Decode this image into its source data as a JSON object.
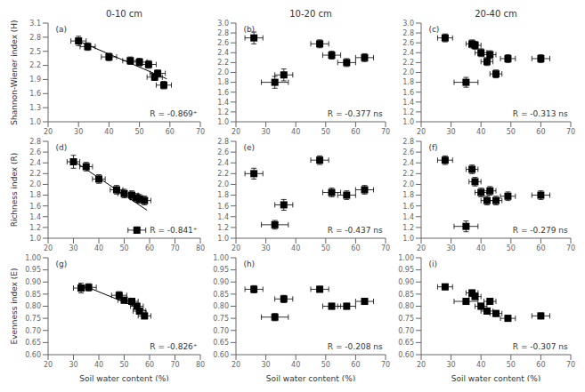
{
  "chart_data": [
    {
      "type": "scatter",
      "title": "0-10 cm",
      "ylabel": "Shannon-Wiener index (H)",
      "annotations": [
        "(a)",
        "R = -0.869⁺"
      ],
      "xlim": [
        20,
        70
      ],
      "ylim": [
        1.0,
        3.1
      ],
      "xticks": [
        20,
        30,
        40,
        50,
        60,
        70
      ],
      "yticks": [
        {
          "value": 1.0,
          "label": "1.0"
        },
        1.3,
        1.6,
        1.9,
        2.2,
        2.5,
        2.8,
        3.1
      ],
      "series": [
        {
          "type": "scatter",
          "marker": "square",
          "color": "#000000",
          "x": [
            30,
            33,
            40,
            47,
            50,
            53,
            55,
            56,
            58
          ],
          "values": [
            2.72,
            2.6,
            2.38,
            2.3,
            2.27,
            2.22,
            1.95,
            2.03,
            1.78
          ],
          "xerr": [
            2.5,
            2.5,
            2.5,
            2.5,
            2.5,
            2.5,
            2.5,
            2.5,
            2.5
          ],
          "yerr": [
            0.1,
            0.08,
            0.08,
            0.08,
            0.08,
            0.08,
            0.07,
            0.07,
            0.08
          ]
        },
        {
          "type": "line",
          "line_style": "solid",
          "color": "#000000",
          "x": [
            29,
            59
          ],
          "values": [
            2.7469,
            1.9136
          ]
        }
      ]
    },
    {
      "type": "scatter",
      "title": "10-20 cm",
      "annotations": [
        "(b)",
        "R = -0.377 ns"
      ],
      "xlim": [
        20,
        70
      ],
      "ylim": [
        1.0,
        3.0
      ],
      "xticks": [
        20,
        30,
        40,
        50,
        60,
        70
      ],
      "yticks": [
        {
          "value": 1.0,
          "label": "1.0"
        },
        1.2,
        1.4,
        1.6,
        1.8,
        {
          "value": 2.0,
          "label": "2.0"
        },
        2.2,
        2.4,
        2.6,
        2.8,
        {
          "value": 3.0,
          "label": "3.0"
        }
      ],
      "series": [
        {
          "type": "scatter",
          "marker": "square",
          "color": "#000000",
          "x": [
            26,
            33,
            36,
            48,
            52,
            57,
            63
          ],
          "values": [
            2.7,
            1.8,
            1.95,
            2.58,
            2.35,
            2.2,
            2.3
          ],
          "xerr": [
            3.0,
            4.5,
            3.0,
            3.0,
            3.0,
            3.0,
            3.0
          ],
          "yerr": [
            0.12,
            0.12,
            0.12,
            0.08,
            0.08,
            0.08,
            0.08
          ]
        }
      ]
    },
    {
      "type": "scatter",
      "title": "20-40 cm",
      "annotations": [
        "(c)",
        "R = -0.313 ns"
      ],
      "xlim": [
        20,
        70
      ],
      "ylim": [
        1.0,
        3.0
      ],
      "xticks": [
        20,
        30,
        40,
        50,
        60,
        70
      ],
      "yticks": [
        {
          "value": 1.0,
          "label": "1.0"
        },
        1.2,
        1.4,
        1.6,
        1.8,
        {
          "value": 2.0,
          "label": "2.0"
        },
        2.2,
        2.4,
        2.6,
        2.8,
        {
          "value": 3.0,
          "label": "3.0"
        }
      ],
      "series": [
        {
          "type": "scatter",
          "marker": "square",
          "color": "#000000",
          "x": [
            28,
            35,
            37,
            38,
            40,
            42,
            43,
            45,
            49,
            60
          ],
          "values": [
            2.7,
            1.8,
            2.58,
            2.55,
            2.4,
            2.22,
            2.36,
            1.97,
            2.28,
            2.28
          ],
          "xerr": [
            2.5,
            4.0,
            2.0,
            2.0,
            2.0,
            2.0,
            2.0,
            2.0,
            2.5,
            3.0
          ],
          "yerr": [
            0.08,
            0.1,
            0.08,
            0.08,
            0.08,
            0.08,
            0.08,
            0.08,
            0.08,
            0.08
          ]
        }
      ]
    },
    {
      "type": "scatter",
      "ylabel": "Richness index (R)",
      "annotations": [
        "(d)",
        "R = -0.841⁺"
      ],
      "xlim": [
        20,
        80
      ],
      "ylim": [
        1.0,
        2.8
      ],
      "xticks": [
        20,
        30,
        40,
        50,
        60,
        70,
        80
      ],
      "yticks": [
        {
          "value": 1.0,
          "label": "1.0"
        },
        1.2,
        1.4,
        1.6,
        1.8,
        {
          "value": 2.0,
          "label": "2.0"
        },
        2.2,
        2.4,
        2.6,
        2.8
      ],
      "series": [
        {
          "type": "scatter",
          "marker": "square",
          "color": "#000000",
          "x": [
            30,
            35,
            40,
            47,
            50,
            53,
            55,
            56,
            58,
            55
          ],
          "values": [
            2.42,
            2.33,
            2.1,
            1.9,
            1.83,
            1.8,
            1.75,
            1.73,
            1.7,
            1.15
          ],
          "xerr": [
            2.5,
            2.5,
            2.5,
            2.5,
            2.5,
            2.5,
            2.5,
            2.5,
            2.5,
            3.5
          ],
          "yerr": [
            0.12,
            0.08,
            0.08,
            0.08,
            0.08,
            0.08,
            0.08,
            0.08,
            0.08,
            0.06
          ]
        },
        {
          "type": "line",
          "line_style": "solid",
          "color": "#000000",
          "x": [
            29,
            59
          ],
          "values": [
            2.4694,
            1.5195
          ]
        }
      ]
    },
    {
      "type": "scatter",
      "annotations": [
        "(e)",
        "R = -0.437 ns"
      ],
      "xlim": [
        20,
        70
      ],
      "ylim": [
        1.0,
        2.8
      ],
      "xticks": [
        20,
        30,
        40,
        50,
        60,
        70
      ],
      "yticks": [
        {
          "value": 1.0,
          "label": "1.0"
        },
        1.2,
        1.4,
        1.6,
        1.8,
        {
          "value": 2.0,
          "label": "2.0"
        },
        2.2,
        2.4,
        2.6,
        2.8
      ],
      "series": [
        {
          "type": "scatter",
          "marker": "square",
          "color": "#000000",
          "x": [
            26,
            33,
            36,
            48,
            52,
            57,
            63
          ],
          "values": [
            2.2,
            1.25,
            1.62,
            2.45,
            1.85,
            1.8,
            1.9
          ],
          "xerr": [
            3.0,
            4.5,
            3.0,
            3.0,
            3.0,
            3.0,
            3.0
          ],
          "yerr": [
            0.1,
            0.08,
            0.1,
            0.08,
            0.08,
            0.08,
            0.08
          ]
        }
      ]
    },
    {
      "type": "scatter",
      "annotations": [
        "(f)",
        "R = -0.279 ns"
      ],
      "xlim": [
        20,
        70
      ],
      "ylim": [
        1.0,
        2.8
      ],
      "xticks": [
        20,
        30,
        40,
        50,
        60,
        70
      ],
      "yticks": [
        {
          "value": 1.0,
          "label": "1.0"
        },
        1.2,
        1.4,
        1.6,
        1.8,
        {
          "value": 2.0,
          "label": "2.0"
        },
        2.2,
        2.4,
        2.6,
        2.8
      ],
      "series": [
        {
          "type": "scatter",
          "marker": "square",
          "color": "#000000",
          "x": [
            28,
            35,
            37,
            38,
            40,
            42,
            43,
            45,
            49,
            60
          ],
          "values": [
            2.45,
            1.22,
            2.28,
            2.05,
            1.85,
            1.7,
            1.88,
            1.7,
            1.78,
            1.8
          ],
          "xerr": [
            2.5,
            4.0,
            2.0,
            2.0,
            2.0,
            2.0,
            2.0,
            2.0,
            2.5,
            3.0
          ],
          "yerr": [
            0.08,
            0.1,
            0.08,
            0.08,
            0.08,
            0.08,
            0.08,
            0.08,
            0.08,
            0.08
          ]
        }
      ]
    },
    {
      "type": "scatter",
      "ylabel": "Evenness index (E)",
      "xlabel": "Soil water content (%)",
      "annotations": [
        "(g)",
        "R = -0.826⁺"
      ],
      "xlim": [
        20,
        80
      ],
      "ylim": [
        0.6,
        1.0
      ],
      "xticks": [
        20,
        30,
        40,
        50,
        60,
        70,
        80
      ],
      "yticks": [
        {
          "value": 0.6,
          "label": "0.60"
        },
        0.65,
        {
          "value": 0.7,
          "label": "0.70"
        },
        0.75,
        {
          "value": 0.8,
          "label": "0.80"
        },
        0.85,
        {
          "value": 0.9,
          "label": "0.90"
        },
        0.95,
        {
          "value": 1.0,
          "label": "1.00"
        }
      ],
      "series": [
        {
          "type": "scatter",
          "marker": "square",
          "color": "#000000",
          "x": [
            33,
            36,
            48,
            50,
            53,
            55,
            56,
            58
          ],
          "values": [
            0.875,
            0.878,
            0.845,
            0.825,
            0.82,
            0.8,
            0.78,
            0.76
          ],
          "xerr": [
            3.0,
            3.0,
            3.0,
            2.5,
            2.5,
            2.5,
            2.5,
            2.5
          ],
          "yerr": [
            0.02,
            0.015,
            0.015,
            0.012,
            0.012,
            0.012,
            0.012,
            0.012
          ]
        },
        {
          "type": "line",
          "line_style": "solid",
          "color": "#000000",
          "x": [
            32,
            59
          ],
          "values": [
            0.8936,
            0.7787
          ]
        }
      ]
    },
    {
      "type": "scatter",
      "xlabel": "Soil water content (%)",
      "annotations": [
        "(h)",
        "R = -0.208 ns"
      ],
      "xlim": [
        20,
        70
      ],
      "ylim": [
        0.6,
        1.0
      ],
      "xticks": [
        20,
        30,
        40,
        50,
        60,
        70
      ],
      "yticks": [
        {
          "value": 0.6,
          "label": "0.60"
        },
        0.65,
        {
          "value": 0.7,
          "label": "0.70"
        },
        0.75,
        {
          "value": 0.8,
          "label": "0.80"
        },
        0.85,
        {
          "value": 0.9,
          "label": "0.90"
        },
        0.95,
        {
          "value": 1.0,
          "label": "1.00"
        }
      ],
      "series": [
        {
          "type": "scatter",
          "marker": "square",
          "color": "#000000",
          "x": [
            26,
            33,
            36,
            48,
            52,
            57,
            63
          ],
          "values": [
            0.87,
            0.755,
            0.83,
            0.87,
            0.8,
            0.8,
            0.82
          ],
          "xerr": [
            3.0,
            4.5,
            3.0,
            3.0,
            3.0,
            3.0,
            3.0
          ],
          "yerr": [
            0.015,
            0.015,
            0.015,
            0.012,
            0.012,
            0.012,
            0.012
          ]
        }
      ]
    },
    {
      "type": "scatter",
      "xlabel": "Soil water content (%)",
      "annotations": [
        "(i)",
        "R = -0.307 ns"
      ],
      "xlim": [
        20,
        70
      ],
      "ylim": [
        0.6,
        1.0
      ],
      "xticks": [
        20,
        30,
        40,
        50,
        60,
        70
      ],
      "yticks": [
        {
          "value": 0.6,
          "label": "0.60"
        },
        0.65,
        {
          "value": 0.7,
          "label": "0.70"
        },
        0.75,
        {
          "value": 0.8,
          "label": "0.80"
        },
        0.85,
        {
          "value": 0.9,
          "label": "0.90"
        },
        0.95,
        {
          "value": 1.0,
          "label": "1.00"
        }
      ],
      "series": [
        {
          "type": "scatter",
          "marker": "square",
          "color": "#000000",
          "x": [
            28,
            35,
            37,
            38,
            40,
            42,
            43,
            45,
            49,
            60
          ],
          "values": [
            0.88,
            0.82,
            0.855,
            0.84,
            0.8,
            0.78,
            0.82,
            0.77,
            0.75,
            0.76
          ],
          "xerr": [
            2.5,
            4.0,
            2.0,
            2.0,
            2.0,
            2.0,
            2.0,
            2.0,
            2.5,
            3.0
          ],
          "yerr": [
            0.012,
            0.012,
            0.012,
            0.012,
            0.012,
            0.012,
            0.012,
            0.012,
            0.012,
            0.012
          ]
        }
      ]
    }
  ]
}
